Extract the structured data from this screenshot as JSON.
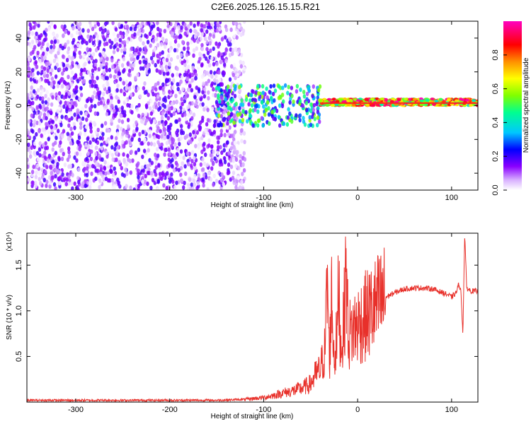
{
  "title": "C2E6.2025.126.15.15.R21",
  "chart_data": [
    {
      "type": "heatmap",
      "xlabel": "Height of straight line (km)",
      "ylabel": "Frequency (Hz)",
      "xlim": [
        -352,
        128
      ],
      "ylim": [
        -50,
        50
      ],
      "xticks": [
        -300,
        -200,
        -100,
        0,
        100
      ],
      "yticks": [
        -40,
        -20,
        0,
        20,
        40
      ],
      "colorbar": {
        "label": "Normalized spectral amplitude",
        "range": [
          0.0,
          1.0
        ],
        "ticks": [
          "0.0",
          "0.2",
          "0.4",
          "0.6",
          "0.8"
        ],
        "tick_values": [
          0.0,
          0.2,
          0.4,
          0.6,
          0.8
        ],
        "colormap": [
          "#ffffff",
          "#c080ff",
          "#7000ff",
          "#0000ff",
          "#00c0ff",
          "#00ff80",
          "#a0ff00",
          "#ffff00",
          "#ff8000",
          "#ff0000",
          "#ff00c0"
        ]
      },
      "regions": [
        {
          "desc": "noise",
          "x": [
            -352,
            -135
          ],
          "freq": [
            -50,
            50
          ],
          "amplitude": [
            0.0,
            0.2
          ]
        },
        {
          "desc": "noise-sparse",
          "x": [
            -135,
            -120
          ],
          "freq": [
            -50,
            50
          ],
          "amplitude": [
            0.0,
            0.1
          ]
        },
        {
          "desc": "onset",
          "x": [
            -150,
            -40
          ],
          "freq": [
            -12,
            12
          ],
          "amplitude": [
            0.1,
            0.6
          ]
        },
        {
          "desc": "carrier",
          "x": [
            -40,
            128
          ],
          "freq": [
            0,
            4
          ],
          "amplitude": [
            0.4,
            1.0
          ]
        }
      ]
    },
    {
      "type": "line",
      "xlabel": "Height of straight line (km)",
      "ylabel": "SNR (10 * v/v)",
      "multiplier": "(x10⁴)",
      "xlim": [
        -352,
        128
      ],
      "ylim": [
        0,
        1.85
      ],
      "xticks": [
        -300,
        -200,
        -100,
        0,
        100
      ],
      "yticks": [
        "0.5",
        "1.0",
        "1.5"
      ],
      "ytick_values": [
        0.5,
        1.0,
        1.5
      ],
      "color": "#e8302a",
      "series": [
        {
          "x": [
            -352,
            -300,
            -250,
            -200,
            -150,
            -120,
            -100,
            -90,
            -80,
            -70,
            -60,
            -50,
            -45,
            -40,
            -35,
            -32,
            -30,
            -28,
            -25,
            -22,
            -20,
            -18,
            -15,
            -12,
            -10,
            -8,
            -5,
            0,
            5,
            10,
            15,
            20,
            25,
            30,
            40,
            50,
            60,
            70,
            80,
            85,
            90,
            95,
            100,
            105,
            108,
            110,
            112,
            114,
            116,
            120,
            128
          ],
          "y": [
            0.02,
            0.02,
            0.02,
            0.02,
            0.02,
            0.03,
            0.05,
            0.07,
            0.1,
            0.12,
            0.15,
            0.2,
            0.3,
            0.35,
            0.55,
            1.35,
            0.4,
            1.2,
            0.5,
            0.7,
            1.3,
            0.6,
            0.8,
            1.5,
            0.7,
            0.75,
            0.8,
            0.85,
            0.9,
            0.95,
            1.0,
            1.05,
            1.1,
            1.15,
            1.2,
            1.24,
            1.25,
            1.25,
            1.24,
            1.22,
            1.2,
            1.18,
            1.15,
            1.2,
            1.3,
            1.2,
            0.75,
            1.85,
            1.25,
            1.22,
            1.21
          ]
        }
      ]
    }
  ]
}
